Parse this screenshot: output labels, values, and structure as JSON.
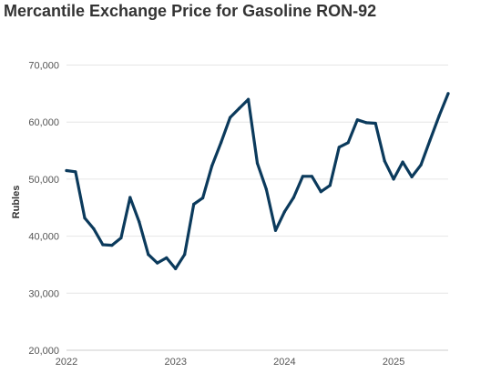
{
  "chart_data": {
    "type": "line",
    "title": "Mercantile Exchange Price for Gasoline RON-92",
    "xlabel": "",
    "ylabel": "Rubles",
    "x_ticks": [
      "2022",
      "2023",
      "2024",
      "2025"
    ],
    "y_ticks": [
      "20,000",
      "30,000",
      "40,000",
      "50,000",
      "60,000",
      "70,000"
    ],
    "ylim": [
      20000,
      72000
    ],
    "xlim": [
      2022.0,
      2025.5
    ],
    "grid": "horizontal",
    "legend": "none",
    "line_color": "#0b3a5c",
    "series": [
      {
        "x": [
          2022.0,
          2022.083,
          2022.167,
          2022.25,
          2022.333,
          2022.417,
          2022.5,
          2022.583,
          2022.667,
          2022.75,
          2022.833,
          2022.917,
          2023.0,
          2023.083,
          2023.167,
          2023.25,
          2023.333,
          2023.417,
          2023.5,
          2023.583,
          2023.667,
          2023.75,
          2023.833,
          2023.917,
          2024.0,
          2024.083,
          2024.167,
          2024.25,
          2024.333,
          2024.417,
          2024.5,
          2024.583,
          2024.667,
          2024.75,
          2024.833,
          2024.917,
          2025.0,
          2025.083,
          2025.167,
          2025.25,
          2025.333,
          2025.417,
          2025.5
        ],
        "values": [
          51500,
          51300,
          43200,
          41300,
          38500,
          38400,
          39700,
          46800,
          42500,
          36800,
          35300,
          36200,
          34300,
          36800,
          45600,
          46700,
          52300,
          56400,
          60800,
          62400,
          64000,
          52800,
          48200,
          41000,
          44300,
          46800,
          50500,
          50500,
          47800,
          48900,
          55600,
          56400,
          60400,
          59900,
          59800,
          53200,
          50000,
          53000,
          50400,
          52500,
          56800,
          61100,
          65000
        ]
      }
    ]
  }
}
